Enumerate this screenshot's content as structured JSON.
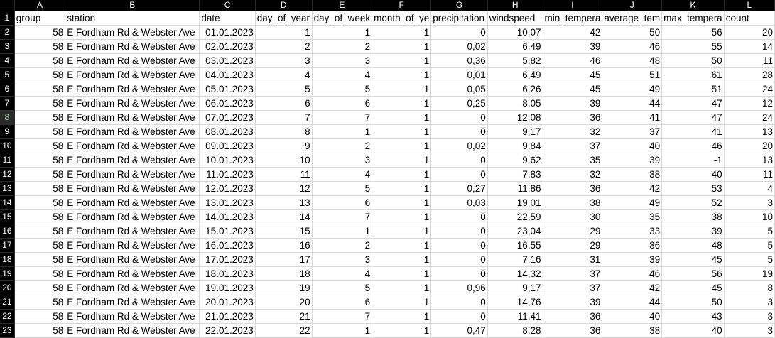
{
  "column_letters": [
    "A",
    "B",
    "C",
    "D",
    "E",
    "F",
    "G",
    "H",
    "I",
    "J",
    "K",
    "L"
  ],
  "active_row": "8",
  "header_row": {
    "row_number": "1",
    "cells": [
      "group",
      "station",
      "date",
      "day_of_year",
      "day_of_week",
      "month_of_ye",
      "precipitation",
      "windspeed",
      "min_tempera",
      "average_tem",
      "max_tempera",
      "count"
    ]
  },
  "rows": [
    {
      "row_number": "2",
      "cells": [
        "58",
        "E Fordham Rd & Webster Ave",
        "01.01.2023",
        "1",
        "1",
        "1",
        "0",
        "10,07",
        "42",
        "50",
        "56",
        "20"
      ]
    },
    {
      "row_number": "3",
      "cells": [
        "58",
        "E Fordham Rd & Webster Ave",
        "02.01.2023",
        "2",
        "2",
        "1",
        "0,02",
        "6,49",
        "39",
        "46",
        "55",
        "14"
      ]
    },
    {
      "row_number": "4",
      "cells": [
        "58",
        "E Fordham Rd & Webster Ave",
        "03.01.2023",
        "3",
        "3",
        "1",
        "0,36",
        "5,82",
        "46",
        "48",
        "50",
        "11"
      ]
    },
    {
      "row_number": "5",
      "cells": [
        "58",
        "E Fordham Rd & Webster Ave",
        "04.01.2023",
        "4",
        "4",
        "1",
        "0,01",
        "6,49",
        "45",
        "51",
        "61",
        "28"
      ]
    },
    {
      "row_number": "6",
      "cells": [
        "58",
        "E Fordham Rd & Webster Ave",
        "05.01.2023",
        "5",
        "5",
        "1",
        "0,05",
        "6,26",
        "45",
        "49",
        "51",
        "24"
      ]
    },
    {
      "row_number": "7",
      "cells": [
        "58",
        "E Fordham Rd & Webster Ave",
        "06.01.2023",
        "6",
        "6",
        "1",
        "0,25",
        "8,05",
        "39",
        "44",
        "47",
        "12"
      ]
    },
    {
      "row_number": "8",
      "cells": [
        "58",
        "E Fordham Rd & Webster Ave",
        "07.01.2023",
        "7",
        "7",
        "1",
        "0",
        "12,08",
        "36",
        "41",
        "47",
        "24"
      ]
    },
    {
      "row_number": "9",
      "cells": [
        "58",
        "E Fordham Rd & Webster Ave",
        "08.01.2023",
        "8",
        "1",
        "1",
        "0",
        "9,17",
        "32",
        "37",
        "41",
        "13"
      ]
    },
    {
      "row_number": "10",
      "cells": [
        "58",
        "E Fordham Rd & Webster Ave",
        "09.01.2023",
        "9",
        "2",
        "1",
        "0,02",
        "9,84",
        "37",
        "40",
        "46",
        "20"
      ]
    },
    {
      "row_number": "11",
      "cells": [
        "58",
        "E Fordham Rd & Webster Ave",
        "10.01.2023",
        "10",
        "3",
        "1",
        "0",
        "9,62",
        "35",
        "39",
        "-1",
        "13"
      ]
    },
    {
      "row_number": "12",
      "cells": [
        "58",
        "E Fordham Rd & Webster Ave",
        "11.01.2023",
        "11",
        "4",
        "1",
        "0",
        "7,83",
        "32",
        "38",
        "40",
        "11"
      ]
    },
    {
      "row_number": "13",
      "cells": [
        "58",
        "E Fordham Rd & Webster Ave",
        "12.01.2023",
        "12",
        "5",
        "1",
        "0,27",
        "11,86",
        "36",
        "42",
        "53",
        "4"
      ]
    },
    {
      "row_number": "14",
      "cells": [
        "58",
        "E Fordham Rd & Webster Ave",
        "13.01.2023",
        "13",
        "6",
        "1",
        "0,03",
        "19,01",
        "38",
        "49",
        "52",
        "3"
      ]
    },
    {
      "row_number": "15",
      "cells": [
        "58",
        "E Fordham Rd & Webster Ave",
        "14.01.2023",
        "14",
        "7",
        "1",
        "0",
        "22,59",
        "30",
        "35",
        "38",
        "10"
      ]
    },
    {
      "row_number": "16",
      "cells": [
        "58",
        "E Fordham Rd & Webster Ave",
        "15.01.2023",
        "15",
        "1",
        "1",
        "0",
        "23,04",
        "29",
        "33",
        "39",
        "5"
      ]
    },
    {
      "row_number": "17",
      "cells": [
        "58",
        "E Fordham Rd & Webster Ave",
        "16.01.2023",
        "16",
        "2",
        "1",
        "0",
        "16,55",
        "29",
        "36",
        "48",
        "5"
      ]
    },
    {
      "row_number": "18",
      "cells": [
        "58",
        "E Fordham Rd & Webster Ave",
        "17.01.2023",
        "17",
        "3",
        "1",
        "0",
        "7,16",
        "31",
        "39",
        "45",
        "5"
      ]
    },
    {
      "row_number": "19",
      "cells": [
        "58",
        "E Fordham Rd & Webster Ave",
        "18.01.2023",
        "18",
        "4",
        "1",
        "0",
        "14,32",
        "37",
        "46",
        "56",
        "19"
      ]
    },
    {
      "row_number": "20",
      "cells": [
        "58",
        "E Fordham Rd & Webster Ave",
        "19.01.2023",
        "19",
        "5",
        "1",
        "0,96",
        "9,17",
        "37",
        "42",
        "45",
        "8"
      ]
    },
    {
      "row_number": "21",
      "cells": [
        "58",
        "E Fordham Rd & Webster Ave",
        "20.01.2023",
        "20",
        "6",
        "1",
        "0",
        "14,76",
        "39",
        "44",
        "50",
        "3"
      ]
    },
    {
      "row_number": "22",
      "cells": [
        "58",
        "E Fordham Rd & Webster Ave",
        "21.01.2023",
        "21",
        "7",
        "1",
        "0",
        "11,41",
        "36",
        "40",
        "43",
        "3"
      ]
    },
    {
      "row_number": "23",
      "cells": [
        "58",
        "E Fordham Rd & Webster Ave",
        "22.01.2023",
        "22",
        "1",
        "1",
        "0,47",
        "8,28",
        "36",
        "38",
        "40",
        "3"
      ]
    }
  ]
}
